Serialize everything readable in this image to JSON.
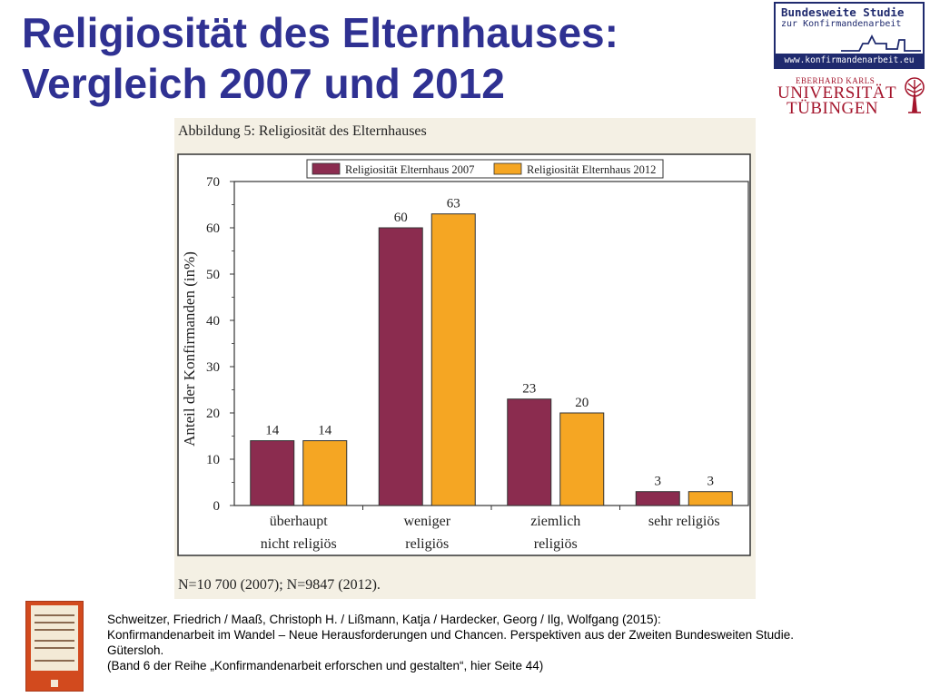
{
  "slide": {
    "title_line1": "Religiosität des Elternhauses:",
    "title_line2": "Vergleich 2007 und 2012"
  },
  "logos": {
    "bws_line1": "Bundesweite Studie",
    "bws_line2": "zur Konfirmandenarbeit",
    "bws_url": "www.konfirmandenarbeit.eu",
    "uni_small": "EBERHARD KARLS",
    "uni_line1": "UNIVERSITÄT",
    "uni_line2": "TÜBINGEN"
  },
  "figure": {
    "caption": "Abbildung 5: Religiosität des Elternhauses",
    "note": "N=10 700 (2007); N=9847 (2012)."
  },
  "chart_data": {
    "type": "bar",
    "categories": [
      [
        "überhaupt",
        "nicht religiös"
      ],
      [
        "weniger",
        "religiös"
      ],
      [
        "ziemlich",
        "religiös"
      ],
      [
        "sehr religiös"
      ]
    ],
    "series": [
      {
        "name": "Religiosität Elternhaus 2007",
        "values": [
          14,
          60,
          23,
          3
        ],
        "color": "#8b2c4f"
      },
      {
        "name": "Religiosität Elternhaus 2012",
        "values": [
          14,
          63,
          20,
          3
        ],
        "color": "#f5a623"
      }
    ],
    "ylabel": "Anteil der Konfirmanden (in%)",
    "ylim": [
      0,
      70
    ],
    "yticks": [
      0,
      10,
      20,
      30,
      40,
      50,
      60,
      70
    ],
    "data_labels": true,
    "legend": "top",
    "grid": false
  },
  "citation": {
    "line1": "Schweitzer, Friedrich / Maaß, Christoph H. / Lißmann, Katja / Hardecker, Georg / Ilg, Wolfgang (2015):",
    "line2": "Konfirmandenarbeit im Wandel – Neue Herausforderungen und Chancen. Perspektiven aus der Zweiten Bundesweiten Studie.",
    "line3": "Gütersloh.",
    "line4": "(Band 6 der Reihe „Konfirmandenarbeit erforschen und gestalten“, hier Seite 44)"
  },
  "colors": {
    "title": "#2f3192",
    "logo_blue": "#1f2a6e",
    "uni_red": "#a4152c",
    "figure_bg": "#f4f0e4"
  }
}
